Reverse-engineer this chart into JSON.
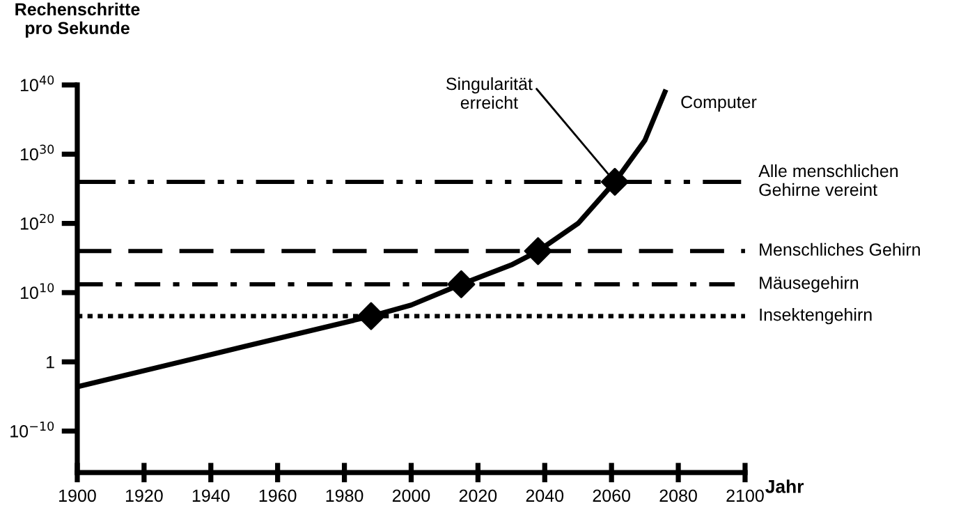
{
  "chart_data": {
    "type": "line",
    "ylabel": "Rechenschritte\npro Sekunde",
    "xlabel": "Jahr",
    "log": "y",
    "grid": false,
    "legend": false,
    "xlim": [
      1900,
      2100
    ],
    "xticks": [
      1900,
      1920,
      1940,
      1960,
      1980,
      2000,
      2020,
      2040,
      2060,
      2080,
      2100
    ],
    "ylim": [
      1e-16,
      1e+40
    ],
    "yticks": [
      {
        "value": 1e-10,
        "label": "10$^{−10}$"
      },
      1,
      {
        "value": 10000000000.0,
        "label": "10$^{10}$"
      },
      {
        "value": 1e+20,
        "label": "10$^{20}$"
      },
      {
        "value": 1e+30,
        "label": "10$^{30}$"
      },
      {
        "value": 1e+40,
        "label": "10$^{40}$"
      }
    ],
    "series": [
      {
        "name": "Computer",
        "color": "#000000",
        "marker": "none",
        "line_style": "solid",
        "x": [
          1900,
          1950,
          1988,
          2000,
          2015,
          2030,
          2038,
          2050,
          2061,
          2070,
          2076
        ],
        "values": [
          0.00025,
          160,
          4000000.0,
          160000000.0,
          160000000000.0,
          100000000000000.0,
          1e+16,
          1e+20,
          1e+26,
          1e+32,
          1e+39
        ]
      },
      {
        "type": "scatter",
        "color": "#000000",
        "marker": "diamond",
        "x": [
          1988,
          2015,
          2038,
          2061
        ],
        "values": [
          4000000.0,
          160000000000.0,
          1e+16,
          1e+26
        ]
      }
    ],
    "ref_lines": [
      {
        "axis": "y",
        "value": 1e+26,
        "label": "Alle menschlichen\nGehirne vereint",
        "color": "#000000",
        "line_style": "dashdotdot"
      },
      {
        "axis": "y",
        "value": 1e+16,
        "label": "Menschliches Gehirn",
        "color": "#000000",
        "line_style": "dashed"
      },
      {
        "axis": "y",
        "value": 160000000000.0,
        "label": "Mäusegehirn",
        "color": "#000000",
        "line_style": "dashdot"
      },
      {
        "axis": "y",
        "value": 4000000.0,
        "label": "Insektengehirn",
        "color": "#000000",
        "line_style": "dotted"
      }
    ],
    "annotations": [
      {
        "text": "Singularität\nerreicht",
        "x": 2061,
        "y": 1e+26
      }
    ]
  }
}
